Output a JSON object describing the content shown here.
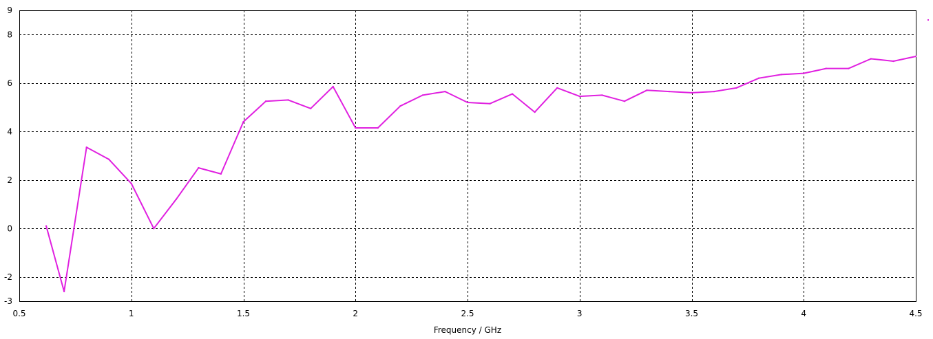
{
  "chart_data": {
    "type": "line",
    "xlabel": "Frequency / GHz",
    "ylabel": "",
    "xlim": [
      0.5,
      4.5
    ],
    "ylim": [
      -3,
      9
    ],
    "xticks": [
      "0.5",
      "1",
      "1.5",
      "2",
      "2.5",
      "3",
      "3.5",
      "4",
      "4.5"
    ],
    "yticks": [
      "-3",
      "-2",
      "0",
      "2",
      "4",
      "6",
      "8",
      "9"
    ],
    "grid": true,
    "legend": "top-right",
    "series": [
      {
        "color": "#e020e0",
        "x": [
          0.62,
          0.7,
          0.8,
          0.9,
          1.0,
          1.1,
          1.2,
          1.3,
          1.4,
          1.5,
          1.6,
          1.7,
          1.8,
          1.9,
          2.0,
          2.1,
          2.2,
          2.3,
          2.4,
          2.5,
          2.6,
          2.7,
          2.8,
          2.9,
          3.0,
          3.1,
          3.2,
          3.3,
          3.4,
          3.5,
          3.6,
          3.7,
          3.8,
          3.9,
          4.0,
          4.1,
          4.2,
          4.3,
          4.4,
          4.5
        ],
        "y": [
          0.1,
          -2.6,
          3.35,
          2.85,
          1.85,
          0.0,
          1.2,
          2.5,
          2.25,
          4.4,
          5.25,
          5.3,
          4.95,
          5.85,
          4.15,
          4.15,
          5.05,
          5.5,
          5.65,
          5.2,
          5.15,
          5.55,
          4.8,
          5.8,
          5.45,
          5.5,
          5.25,
          5.7,
          5.65,
          5.6,
          5.65,
          5.8,
          6.2,
          6.35,
          6.4,
          6.6,
          6.6,
          7.0,
          6.9,
          7.1
        ]
      }
    ]
  }
}
